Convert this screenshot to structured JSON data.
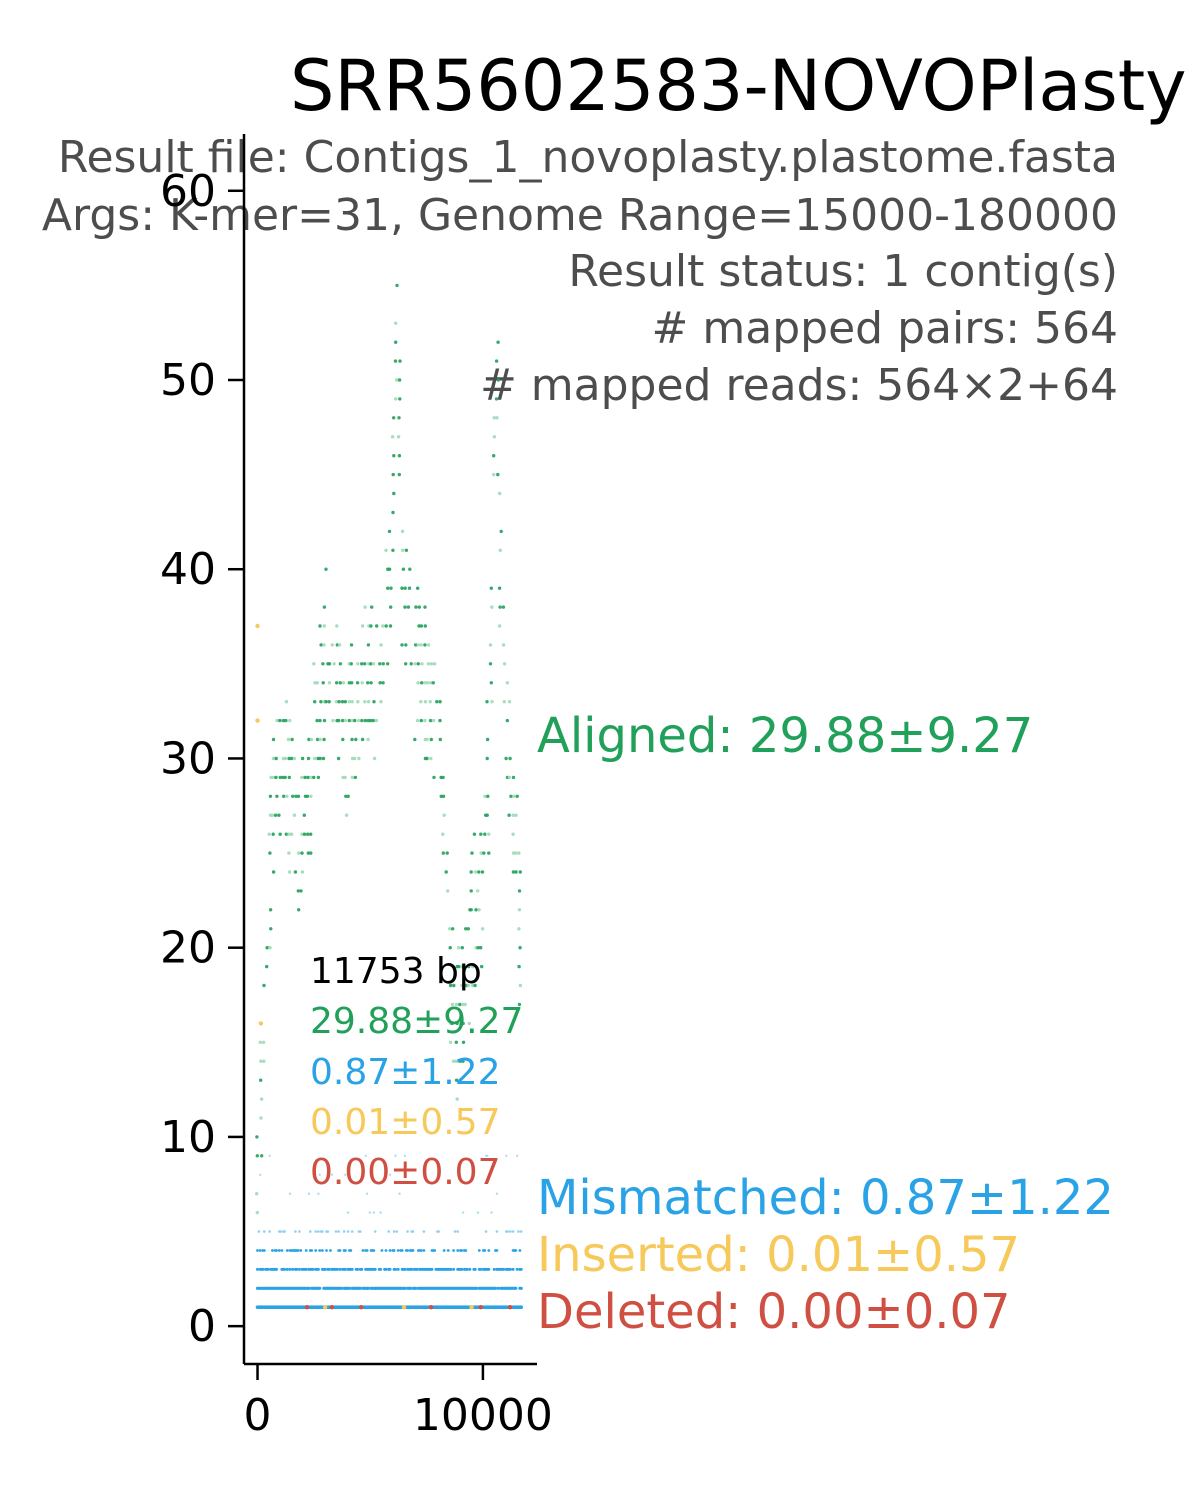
{
  "chart_data": {
    "type": "scatter",
    "title": "SRR5602583-NOVOPlasty",
    "info_lines": [
      "Result file: Contigs_1_novoplasty.plastome.fasta",
      "Args: K-mer=31, Genome Range=15000-180000",
      "Result status: 1 contig(s)",
      "# mapped pairs: 564",
      "# mapped reads: 564×2+64"
    ],
    "xlabel": "",
    "ylabel": "",
    "xlim": [
      -600,
      12400
    ],
    "ylim": [
      -2,
      63
    ],
    "x_ticks": [
      0,
      10000
    ],
    "y_ticks": [
      0,
      10,
      20,
      30,
      40,
      50,
      60
    ],
    "grid": false,
    "contig_length_bp": 11753,
    "stats_box": {
      "length_label": "11753 bp",
      "aligned": "29.88±9.27",
      "mismatched": "0.87±1.22",
      "inserted": "0.01±0.57",
      "deleted": "0.00±0.07"
    },
    "series": [
      {
        "name": "Aligned",
        "label": "Aligned: 29.88±9.27",
        "color": "#21a05a",
        "mean": 29.88,
        "sd": 9.27,
        "profile_x": [
          0,
          200,
          400,
          600,
          800,
          1000,
          1300,
          1600,
          1900,
          2200,
          2500,
          2800,
          3100,
          3400,
          3700,
          4000,
          4300,
          4600,
          4900,
          5200,
          5500,
          5800,
          6000,
          6200,
          6400,
          6600,
          6800,
          7000,
          7300,
          7600,
          7900,
          8200,
          8500,
          8800,
          9100,
          9400,
          9700,
          10000,
          10200,
          10400,
          10600,
          10800,
          11000,
          11300,
          11600,
          11753
        ],
        "profile_y": [
          10,
          16,
          22,
          28,
          32,
          33,
          32,
          30,
          28,
          30,
          33,
          35,
          38,
          36,
          34,
          33,
          35,
          36,
          37,
          36,
          38,
          40,
          46,
          56,
          44,
          40,
          39,
          38,
          37,
          36,
          34,
          30,
          22,
          18,
          19,
          22,
          24,
          26,
          30,
          40,
          54,
          42,
          35,
          30,
          24,
          14
        ],
        "spread": 4
      },
      {
        "name": "Mismatched",
        "label": "Mismatched: 0.87±1.22",
        "color": "#2aa3e6",
        "mean": 0.87,
        "sd": 1.22,
        "values_range": [
          1,
          6
        ]
      },
      {
        "name": "Inserted",
        "label": "Inserted: 0.01±0.57",
        "color": "#f7c85a",
        "mean": 0.01,
        "sd": 0.57,
        "points": [
          [
            0,
            37
          ],
          [
            0,
            32
          ],
          [
            150,
            16
          ],
          [
            3000,
            1
          ],
          [
            6500,
            1
          ],
          [
            9500,
            1
          ]
        ]
      },
      {
        "name": "Deleted",
        "label": "Deleted: 0.00±0.07",
        "color": "#d04f43",
        "mean": 0.0,
        "sd": 0.07,
        "points": [
          [
            2200,
            1
          ],
          [
            3300,
            1
          ],
          [
            4600,
            1
          ],
          [
            7700,
            1
          ],
          [
            9900,
            1
          ],
          [
            11200,
            1
          ]
        ]
      }
    ]
  },
  "colors": {
    "info_text": "#4d4d4d",
    "axis": "#000000"
  }
}
